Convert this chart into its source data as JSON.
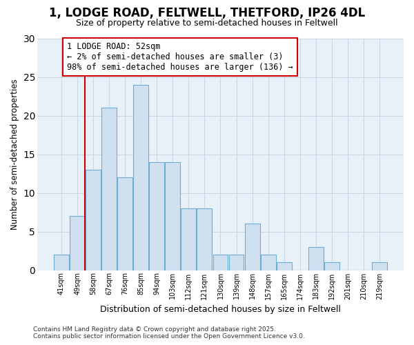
{
  "title1": "1, LODGE ROAD, FELTWELL, THETFORD, IP26 4DL",
  "title2": "Size of property relative to semi-detached houses in Feltwell",
  "xlabel": "Distribution of semi-detached houses by size in Feltwell",
  "ylabel": "Number of semi-detached properties",
  "categories": [
    "41sqm",
    "49sqm",
    "58sqm",
    "67sqm",
    "76sqm",
    "85sqm",
    "94sqm",
    "103sqm",
    "112sqm",
    "121sqm",
    "130sqm",
    "139sqm",
    "148sqm",
    "157sqm",
    "165sqm",
    "174sqm",
    "183sqm",
    "192sqm",
    "201sqm",
    "210sqm",
    "219sqm"
  ],
  "values": [
    2,
    7,
    13,
    21,
    12,
    24,
    14,
    14,
    8,
    8,
    2,
    2,
    6,
    2,
    1,
    0,
    3,
    1,
    0,
    0,
    1
  ],
  "highlight_index": 1,
  "bar_color": "#cfe0f0",
  "bar_edge_color": "#6aaed6",
  "annotation_text": "1 LODGE ROAD: 52sqm\n← 2% of semi-detached houses are smaller (3)\n98% of semi-detached houses are larger (136) →",
  "annotation_box_edge_color": "#cc0000",
  "annotation_fontsize": 8.5,
  "red_line_color": "#cc0000",
  "ylim": [
    0,
    30
  ],
  "yticks": [
    0,
    5,
    10,
    15,
    20,
    25,
    30
  ],
  "background_color": "#ffffff",
  "plot_bg_color": "#e8f0f8",
  "grid_color": "#c8d8e8",
  "title1_fontsize": 12,
  "title2_fontsize": 9,
  "footer": "Contains HM Land Registry data © Crown copyright and database right 2025.\nContains public sector information licensed under the Open Government Licence v3.0."
}
